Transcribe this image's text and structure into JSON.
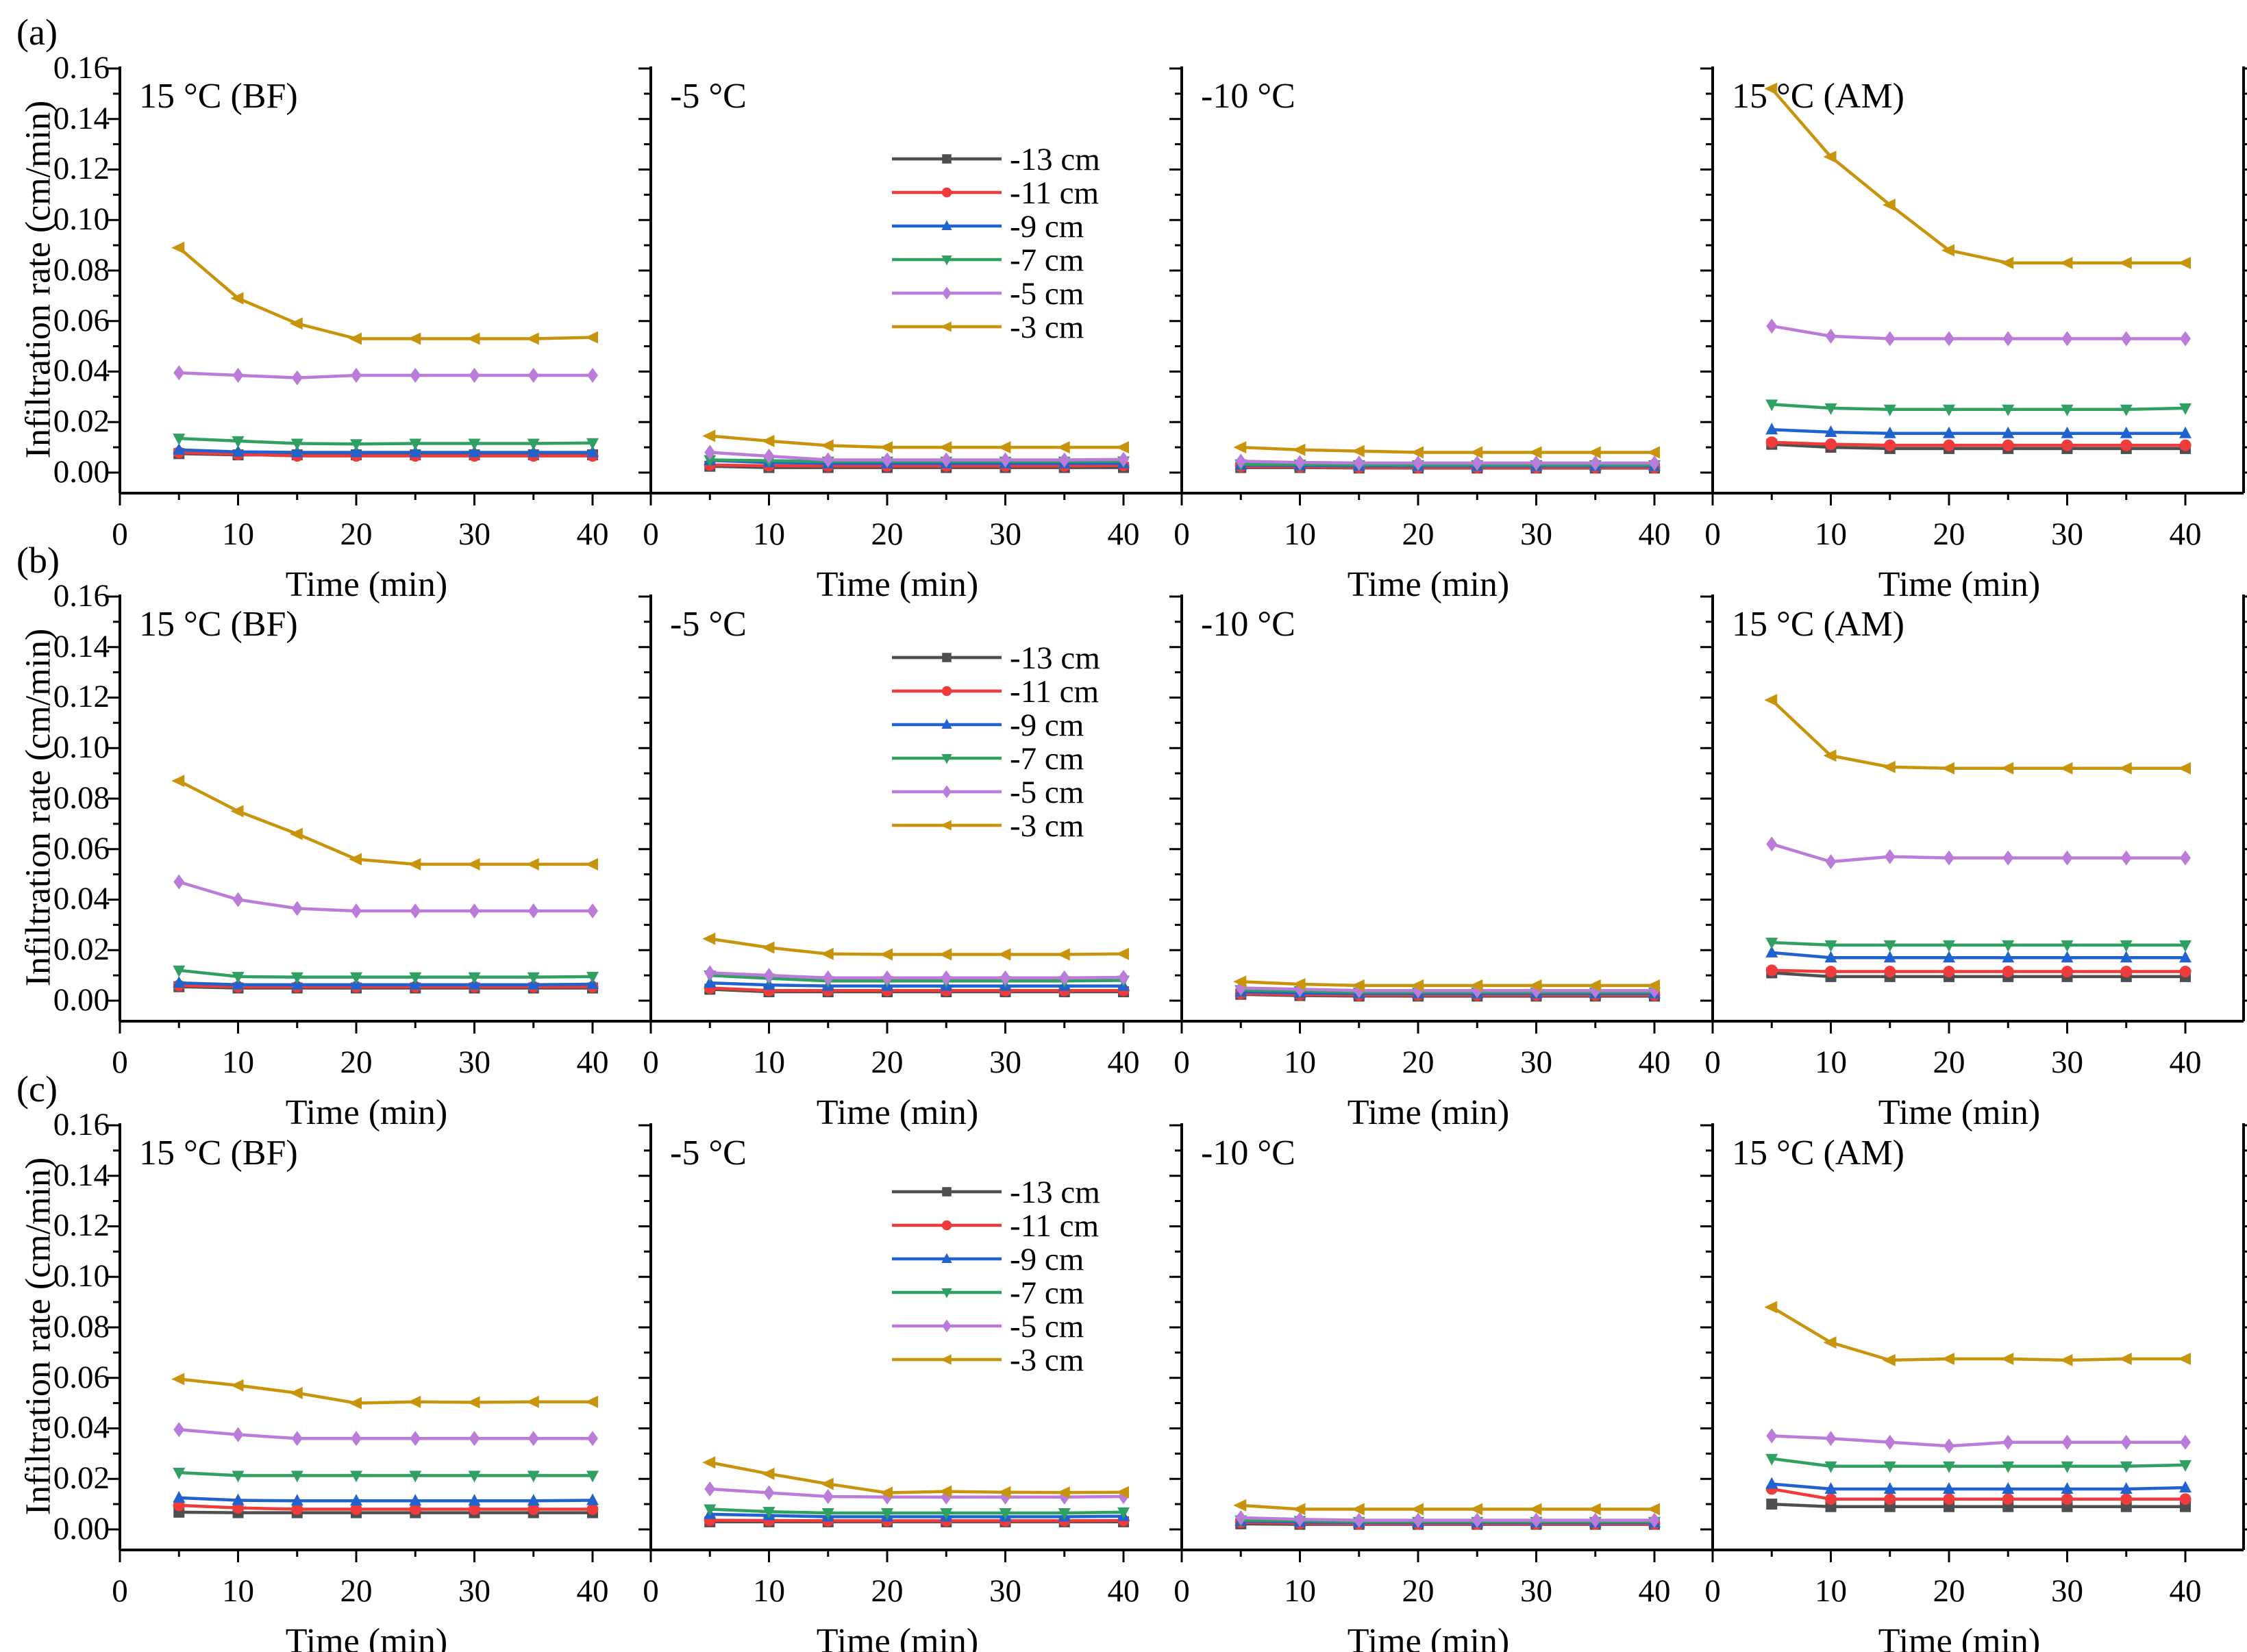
{
  "figure": {
    "row_labels": [
      "(a)",
      "(b)",
      "(c)"
    ],
    "ylabel": "Infiltration rate (cm/min)",
    "xlabel": "Time (min)",
    "ytick_labels": [
      "0.00",
      "0.02",
      "0.04",
      "0.06",
      "0.08",
      "0.10",
      "0.12",
      "0.14",
      "0.16"
    ],
    "xtick_labels": [
      "0",
      "10",
      "20",
      "30",
      "40"
    ]
  },
  "chart_data": {
    "type": "line",
    "x": [
      5,
      10,
      15,
      20,
      25,
      30,
      35,
      40
    ],
    "xlabel": "Time (min)",
    "ylabel": "Infiltration rate (cm/min)",
    "xlim": [
      0,
      45
    ],
    "ylim": [
      -0.008,
      0.161
    ],
    "xticks": [
      0,
      10,
      20,
      30,
      40
    ],
    "xticks_minor": [
      5,
      15,
      25,
      35
    ],
    "yticks": [
      0,
      0.02,
      0.04,
      0.06,
      0.08,
      0.1,
      0.12,
      0.14,
      0.16
    ],
    "grid": false,
    "legend_position": "inside -5 °C panels",
    "series_defs": [
      {
        "name": "-13 cm",
        "color": "#4f4f4f",
        "marker": "square"
      },
      {
        "name": "-11 cm",
        "color": "#ef3b3c",
        "marker": "circle"
      },
      {
        "name": "-9 cm",
        "color": "#2163ce",
        "marker": "triangle-up"
      },
      {
        "name": "-7 cm",
        "color": "#2fa061",
        "marker": "triangle-down"
      },
      {
        "name": "-5 cm",
        "color": "#bb7bd9",
        "marker": "diamond"
      },
      {
        "name": "-3 cm",
        "color": "#c8940b",
        "marker": "triangle-left"
      }
    ],
    "rows": [
      {
        "label": "(a)",
        "panels": [
          {
            "title": "15 °C (BF)",
            "legend": false,
            "series": [
              [
                0.0075,
                0.007,
                0.007,
                0.007,
                0.007,
                0.007,
                0.007,
                0.007
              ],
              [
                0.008,
                0.0072,
                0.0066,
                0.0066,
                0.0066,
                0.0066,
                0.0066,
                0.0066
              ],
              [
                0.009,
                0.0082,
                0.008,
                0.008,
                0.008,
                0.008,
                0.008,
                0.008
              ],
              [
                0.0135,
                0.0125,
                0.0115,
                0.0113,
                0.0115,
                0.0115,
                0.0115,
                0.0117
              ],
              [
                0.0395,
                0.0385,
                0.0375,
                0.0385,
                0.0385,
                0.0385,
                0.0385,
                0.0385
              ],
              [
                0.089,
                0.069,
                0.059,
                0.053,
                0.053,
                0.053,
                0.053,
                0.0535
              ]
            ]
          },
          {
            "title": "-5 °C",
            "legend": true,
            "series": [
              [
                0.0025,
                0.002,
                0.002,
                0.002,
                0.002,
                0.002,
                0.002,
                0.002
              ],
              [
                0.003,
                0.0027,
                0.0026,
                0.0026,
                0.0026,
                0.0026,
                0.0026,
                0.0028
              ],
              [
                0.0048,
                0.004,
                0.0036,
                0.0036,
                0.0036,
                0.0036,
                0.0036,
                0.0036
              ],
              [
                0.005,
                0.0047,
                0.0044,
                0.0044,
                0.0044,
                0.0044,
                0.0044,
                0.0045
              ],
              [
                0.008,
                0.0065,
                0.005,
                0.005,
                0.005,
                0.005,
                0.005,
                0.0052
              ],
              [
                0.0145,
                0.0125,
                0.0107,
                0.01,
                0.01,
                0.01,
                0.01,
                0.01
              ]
            ]
          },
          {
            "title": "-10 °C",
            "legend": false,
            "series": [
              [
                0.002,
                0.002,
                0.0018,
                0.0018,
                0.0018,
                0.0018,
                0.0018,
                0.0018
              ],
              [
                0.0024,
                0.0023,
                0.002,
                0.002,
                0.002,
                0.002,
                0.002,
                0.002
              ],
              [
                0.003,
                0.0028,
                0.0026,
                0.0026,
                0.0026,
                0.0026,
                0.0026,
                0.0026
              ],
              [
                0.0033,
                0.0032,
                0.003,
                0.003,
                0.003,
                0.003,
                0.003,
                0.003
              ],
              [
                0.0045,
                0.004,
                0.0038,
                0.0038,
                0.0038,
                0.0038,
                0.0038,
                0.0038
              ],
              [
                0.01,
                0.009,
                0.0085,
                0.008,
                0.008,
                0.008,
                0.008,
                0.008
              ]
            ]
          },
          {
            "title": "15 °C (AM)",
            "legend": false,
            "series": [
              [
                0.0112,
                0.01,
                0.0095,
                0.0095,
                0.0095,
                0.0095,
                0.0095,
                0.0095
              ],
              [
                0.012,
                0.0112,
                0.0108,
                0.0108,
                0.0108,
                0.0108,
                0.0108,
                0.0108
              ],
              [
                0.017,
                0.016,
                0.0155,
                0.0155,
                0.0155,
                0.0155,
                0.0155,
                0.0155
              ],
              [
                0.027,
                0.0255,
                0.025,
                0.025,
                0.025,
                0.025,
                0.025,
                0.0255
              ],
              [
                0.058,
                0.054,
                0.053,
                0.053,
                0.053,
                0.053,
                0.053,
                0.053
              ],
              [
                0.152,
                0.125,
                0.106,
                0.088,
                0.083,
                0.083,
                0.083,
                0.083
              ]
            ]
          }
        ]
      },
      {
        "label": "(b)",
        "panels": [
          {
            "title": "15 °C (BF)",
            "legend": false,
            "series": [
              [
                0.0055,
                0.005,
                0.005,
                0.005,
                0.005,
                0.005,
                0.005,
                0.005
              ],
              [
                0.006,
                0.0055,
                0.0055,
                0.0055,
                0.0055,
                0.0055,
                0.0055,
                0.0055
              ],
              [
                0.007,
                0.0063,
                0.0063,
                0.0063,
                0.0063,
                0.0063,
                0.0063,
                0.0065
              ],
              [
                0.012,
                0.0095,
                0.0093,
                0.0093,
                0.0093,
                0.0093,
                0.0093,
                0.0095
              ],
              [
                0.047,
                0.04,
                0.0365,
                0.0355,
                0.0355,
                0.0355,
                0.0355,
                0.0355
              ],
              [
                0.087,
                0.075,
                0.066,
                0.056,
                0.054,
                0.054,
                0.054,
                0.054
              ]
            ]
          },
          {
            "title": "-5 °C",
            "legend": true,
            "series": [
              [
                0.0045,
                0.0035,
                0.0035,
                0.0035,
                0.0035,
                0.0035,
                0.0035,
                0.0035
              ],
              [
                0.005,
                0.004,
                0.004,
                0.004,
                0.004,
                0.004,
                0.004,
                0.004
              ],
              [
                0.007,
                0.0062,
                0.0058,
                0.0058,
                0.0058,
                0.0058,
                0.0058,
                0.0058
              ],
              [
                0.01,
                0.0088,
                0.0078,
                0.0078,
                0.0078,
                0.0078,
                0.0078,
                0.008
              ],
              [
                0.011,
                0.01,
                0.009,
                0.009,
                0.009,
                0.009,
                0.009,
                0.0092
              ],
              [
                0.0245,
                0.021,
                0.0185,
                0.0183,
                0.0183,
                0.0183,
                0.0183,
                0.0185
              ]
            ]
          },
          {
            "title": "-10 °C",
            "legend": false,
            "series": [
              [
                0.0025,
                0.002,
                0.0018,
                0.0018,
                0.0018,
                0.0018,
                0.0018,
                0.0018
              ],
              [
                0.0028,
                0.0023,
                0.0022,
                0.0022,
                0.0022,
                0.0022,
                0.0022,
                0.0022
              ],
              [
                0.0035,
                0.003,
                0.0028,
                0.0028,
                0.0028,
                0.0028,
                0.0028,
                0.0028
              ],
              [
                0.0042,
                0.0038,
                0.0033,
                0.0033,
                0.0033,
                0.0033,
                0.0033,
                0.0033
              ],
              [
                0.005,
                0.0045,
                0.004,
                0.004,
                0.004,
                0.004,
                0.004,
                0.004
              ],
              [
                0.0075,
                0.0065,
                0.006,
                0.006,
                0.006,
                0.006,
                0.006,
                0.006
              ]
            ]
          },
          {
            "title": "15 °C (AM)",
            "legend": false,
            "series": [
              [
                0.011,
                0.0095,
                0.0095,
                0.0095,
                0.0095,
                0.0095,
                0.0095,
                0.0095
              ],
              [
                0.012,
                0.0115,
                0.0115,
                0.0115,
                0.0115,
                0.0115,
                0.0115,
                0.0115
              ],
              [
                0.019,
                0.017,
                0.017,
                0.017,
                0.017,
                0.017,
                0.017,
                0.017
              ],
              [
                0.023,
                0.022,
                0.022,
                0.022,
                0.022,
                0.022,
                0.022,
                0.022
              ],
              [
                0.062,
                0.055,
                0.057,
                0.0565,
                0.0565,
                0.0565,
                0.0565,
                0.0565
              ],
              [
                0.119,
                0.097,
                0.0925,
                0.092,
                0.092,
                0.092,
                0.092,
                0.092
              ]
            ]
          }
        ]
      },
      {
        "label": "(c)",
        "panels": [
          {
            "title": "15 °C (BF)",
            "legend": false,
            "series": [
              [
                0.0068,
                0.0066,
                0.0066,
                0.0066,
                0.0066,
                0.0066,
                0.0066,
                0.0066
              ],
              [
                0.0095,
                0.0085,
                0.008,
                0.008,
                0.008,
                0.008,
                0.008,
                0.008
              ],
              [
                0.0125,
                0.0115,
                0.0113,
                0.0113,
                0.0113,
                0.0113,
                0.0113,
                0.0115
              ],
              [
                0.0225,
                0.0213,
                0.0213,
                0.0213,
                0.0213,
                0.0213,
                0.0213,
                0.0213
              ],
              [
                0.0395,
                0.0375,
                0.036,
                0.036,
                0.036,
                0.036,
                0.036,
                0.036
              ],
              [
                0.0595,
                0.057,
                0.054,
                0.05,
                0.0505,
                0.0503,
                0.0505,
                0.0505
              ]
            ]
          },
          {
            "title": "-5 °C",
            "legend": true,
            "series": [
              [
                0.003,
                0.003,
                0.003,
                0.003,
                0.003,
                0.003,
                0.003,
                0.003
              ],
              [
                0.0036,
                0.0035,
                0.0034,
                0.0034,
                0.0034,
                0.0034,
                0.0034,
                0.0035
              ],
              [
                0.006,
                0.0055,
                0.005,
                0.005,
                0.005,
                0.005,
                0.005,
                0.0052
              ],
              [
                0.008,
                0.007,
                0.0065,
                0.0065,
                0.0065,
                0.0065,
                0.0065,
                0.0068
              ],
              [
                0.016,
                0.0145,
                0.013,
                0.0128,
                0.0128,
                0.0128,
                0.0128,
                0.013
              ],
              [
                0.0265,
                0.022,
                0.018,
                0.0145,
                0.015,
                0.0147,
                0.0146,
                0.0147
              ]
            ]
          },
          {
            "title": "-10 °C",
            "legend": false,
            "series": [
              [
                0.0022,
                0.002,
                0.002,
                0.002,
                0.002,
                0.002,
                0.002,
                0.002
              ],
              [
                0.0028,
                0.0024,
                0.0022,
                0.0022,
                0.0022,
                0.0022,
                0.0022,
                0.0022
              ],
              [
                0.0033,
                0.0029,
                0.0027,
                0.0027,
                0.0027,
                0.0027,
                0.0027,
                0.0027
              ],
              [
                0.0036,
                0.0034,
                0.003,
                0.003,
                0.003,
                0.003,
                0.003,
                0.003
              ],
              [
                0.0046,
                0.004,
                0.0036,
                0.0036,
                0.0036,
                0.0036,
                0.0036,
                0.0036
              ],
              [
                0.0095,
                0.008,
                0.008,
                0.008,
                0.008,
                0.008,
                0.008,
                0.008
              ]
            ]
          },
          {
            "title": "15 °C (AM)",
            "legend": false,
            "series": [
              [
                0.01,
                0.009,
                0.009,
                0.009,
                0.009,
                0.009,
                0.009,
                0.009
              ],
              [
                0.016,
                0.012,
                0.012,
                0.012,
                0.012,
                0.012,
                0.012,
                0.012
              ],
              [
                0.018,
                0.016,
                0.016,
                0.016,
                0.016,
                0.016,
                0.016,
                0.0165
              ],
              [
                0.028,
                0.025,
                0.025,
                0.025,
                0.025,
                0.025,
                0.025,
                0.0255
              ],
              [
                0.037,
                0.036,
                0.0345,
                0.033,
                0.0345,
                0.0345,
                0.0345,
                0.0345
              ],
              [
                0.088,
                0.074,
                0.067,
                0.0675,
                0.0675,
                0.067,
                0.0675,
                0.0675
              ]
            ]
          }
        ]
      }
    ]
  }
}
